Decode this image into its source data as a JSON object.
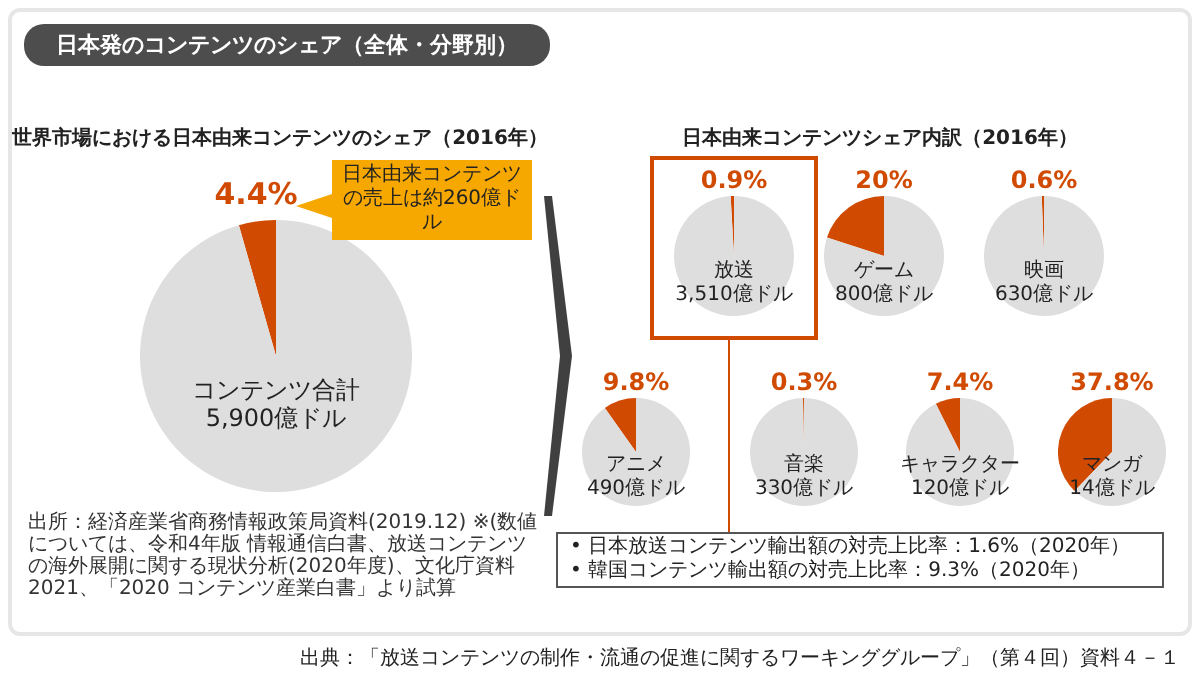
{
  "chart_data": [
    {
      "type": "pie",
      "title": "コンテンツ合計",
      "subtitle": "5,900億ドル",
      "categories": [
        null,
        null
      ],
      "values": [
        4.4,
        95.6
      ],
      "value_labels": [
        "4.4%",
        null
      ],
      "colors": [
        "#d04a02",
        "#dedede"
      ],
      "annotations": [
        "日本発のコンテンツのシェア（全体・分野別）",
        "世界市場における日本由来コンテンツのシェア（2016年）",
        "日本由来コンテンツの売上は約260億ドル",
        "出所：経済産業省商務情報政策局資料(2019.12) ※(数値については、令和4年版 情報通信白書、放送コンテンツの海外展開に関する現状分析(2020年度)、文化庁資料2021、「2020 コンテンツ産業白書」より試算",
        "出典：「放送コンテンツの制作・流通の促進に関するワーキンググループ」（第４回）資料４－１"
      ]
    },
    {
      "type": "pie",
      "title": "放送",
      "subtitle": "3,510億ドル",
      "categories": [
        null,
        null
      ],
      "values": [
        0.9,
        99.1
      ],
      "value_labels": [
        "0.9%",
        null
      ],
      "colors": [
        "#d04a02",
        "#dedede"
      ],
      "annotations": [
        "日本由来コンテンツシェア内訳（2016年）",
        "• 日本放送コンテンツ輸出額の対売上比率：1.6%（2020年）",
        "• 韓国コンテンツ輸出額の対売上比率：9.3%（2020年）"
      ]
    },
    {
      "type": "pie",
      "title": "ゲーム",
      "subtitle": "800億ドル",
      "categories": [
        null,
        null
      ],
      "values": [
        20,
        80
      ],
      "value_labels": [
        "20%",
        null
      ],
      "colors": [
        "#d04a02",
        "#dedede"
      ]
    },
    {
      "type": "pie",
      "title": "映画",
      "subtitle": "630億ドル",
      "categories": [
        null,
        null
      ],
      "values": [
        0.6,
        99.4
      ],
      "value_labels": [
        "0.6%",
        null
      ],
      "colors": [
        "#d04a02",
        "#dedede"
      ]
    },
    {
      "type": "pie",
      "title": "アニメ",
      "subtitle": "490億ドル",
      "categories": [
        null,
        null
      ],
      "values": [
        9.8,
        90.2
      ],
      "value_labels": [
        "9.8%",
        null
      ],
      "colors": [
        "#d04a02",
        "#dedede"
      ]
    },
    {
      "type": "pie",
      "title": "音楽",
      "subtitle": "330億ドル",
      "categories": [
        null,
        null
      ],
      "values": [
        0.3,
        99.7
      ],
      "value_labels": [
        "0.3%",
        null
      ],
      "colors": [
        "#d04a02",
        "#dedede"
      ]
    },
    {
      "type": "pie",
      "title": "キャラクター",
      "subtitle": "120億ドル",
      "categories": [
        null,
        null
      ],
      "values": [
        7.4,
        92.6
      ],
      "value_labels": [
        "7.4%",
        null
      ],
      "colors": [
        "#d04a02",
        "#dedede"
      ]
    },
    {
      "type": "pie",
      "title": "マンガ",
      "subtitle": "14億ドル",
      "categories": [
        null,
        null
      ],
      "values": [
        37.8,
        62.2
      ],
      "value_labels": [
        "37.8%",
        null
      ],
      "colors": [
        "#d04a02",
        "#dedede"
      ]
    }
  ]
}
